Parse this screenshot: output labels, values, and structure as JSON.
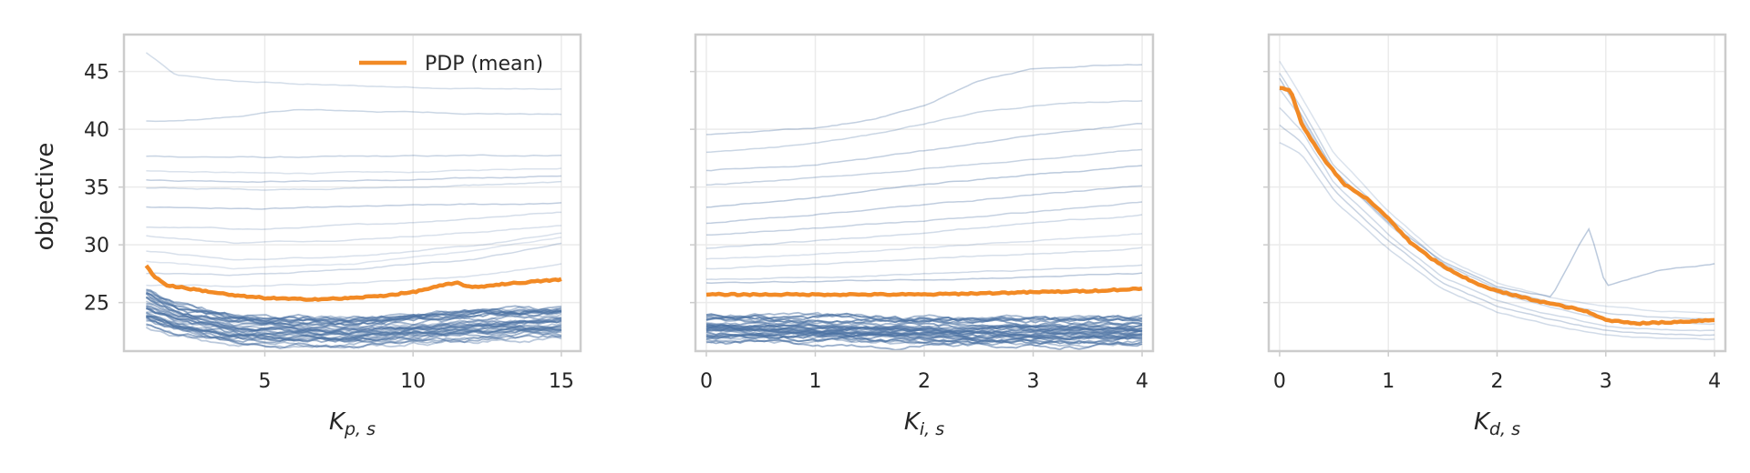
{
  "colors": {
    "ice": "#4c72a3",
    "pdp": "#f28a25",
    "frame": "#cccccc",
    "grid": "#ebebeb"
  },
  "shared": {
    "ylabel": "objective",
    "ylim": [
      20.8,
      48.2
    ],
    "yticks": [
      25,
      30,
      35,
      40,
      45
    ]
  },
  "chart_data": [
    {
      "type": "line",
      "xlabel_base": "K",
      "xlabel_sub": "p, s",
      "xlim": [
        0.25,
        15.65
      ],
      "xticks": [
        5,
        10,
        15
      ],
      "legend": {
        "entry": "PDP (mean)",
        "placement": "top-right"
      },
      "pdp": {
        "name": "PDP (mean)",
        "x": [
          1.0,
          1.3,
          1.7,
          2.2,
          3.0,
          4.0,
          5.0,
          6.0,
          7.0,
          8.0,
          9.0,
          10.0,
          11.0,
          11.5,
          12.0,
          13.0,
          14.0,
          15.0
        ],
        "y": [
          28.2,
          27.2,
          26.5,
          26.3,
          26.0,
          25.6,
          25.4,
          25.3,
          25.3,
          25.4,
          25.6,
          25.9,
          26.5,
          26.7,
          26.3,
          26.6,
          26.8,
          27.0
        ]
      },
      "ice_bands": [
        {
          "x": [
            1,
            2,
            4,
            6,
            8,
            10,
            12,
            15
          ],
          "y": [
            46.6,
            44.6,
            44.1,
            43.9,
            43.7,
            43.6,
            43.5,
            43.4
          ]
        },
        {
          "x": [
            1,
            2,
            4,
            6,
            8,
            10,
            12,
            15
          ],
          "y": [
            40.6,
            40.6,
            41.0,
            41.6,
            41.5,
            41.4,
            41.3,
            41.2
          ]
        },
        {
          "x": [
            1,
            5,
            10,
            15
          ],
          "y": [
            37.6,
            37.5,
            37.6,
            37.7
          ]
        },
        {
          "x": [
            1,
            5,
            10,
            15
          ],
          "y": [
            36.5,
            36.3,
            36.4,
            36.8
          ]
        },
        {
          "x": [
            1,
            5,
            10,
            15
          ],
          "y": [
            35.6,
            35.5,
            35.6,
            36.0
          ]
        },
        {
          "x": [
            1,
            5,
            10,
            15
          ],
          "y": [
            34.9,
            34.8,
            35.0,
            35.4
          ]
        },
        {
          "x": [
            1,
            5,
            10,
            15
          ],
          "y": [
            33.4,
            33.2,
            33.5,
            33.7
          ]
        },
        {
          "x": [
            1,
            5,
            10,
            15
          ],
          "y": [
            31.6,
            31.4,
            32.0,
            32.9
          ]
        },
        {
          "x": [
            1,
            4,
            8,
            12,
            15
          ],
          "y": [
            30.9,
            30.3,
            30.6,
            31.2,
            31.8
          ]
        },
        {
          "x": [
            1,
            4,
            8,
            12,
            15
          ],
          "y": [
            29.6,
            28.8,
            29.2,
            30.0,
            31.1
          ]
        },
        {
          "x": [
            1,
            4,
            8,
            12,
            15
          ],
          "y": [
            28.6,
            28.0,
            28.4,
            29.5,
            30.7
          ]
        },
        {
          "x": [
            1,
            4,
            8,
            12,
            15
          ],
          "y": [
            27.4,
            27.3,
            27.8,
            28.6,
            30.0
          ]
        },
        {
          "x": [
            1,
            4,
            8,
            12,
            15
          ],
          "y": [
            26.6,
            26.5,
            26.8,
            27.4,
            28.4
          ]
        },
        {
          "x": [
            1,
            2,
            4,
            8,
            12,
            15
          ],
          "y": [
            25.9,
            24.5,
            23.6,
            23.4,
            24.1,
            24.3
          ]
        },
        {
          "x": [
            1,
            2,
            4,
            8,
            12,
            15
          ],
          "y": [
            25.1,
            24.0,
            23.1,
            22.9,
            23.6,
            23.9
          ]
        },
        {
          "x": [
            1,
            2,
            4,
            8,
            12,
            15
          ],
          "y": [
            24.5,
            23.5,
            22.7,
            22.5,
            23.1,
            23.5
          ]
        },
        {
          "x": [
            1,
            2,
            4,
            8,
            12,
            15
          ],
          "y": [
            23.9,
            23.0,
            22.2,
            22.0,
            22.6,
            22.9
          ]
        },
        {
          "x": [
            1,
            2,
            4,
            8,
            12,
            15
          ],
          "y": [
            23.4,
            22.6,
            21.9,
            21.6,
            22.1,
            22.3
          ]
        }
      ]
    },
    {
      "type": "line",
      "xlabel_base": "K",
      "xlabel_sub": "i, s",
      "xlim": [
        -0.1,
        4.1
      ],
      "xticks": [
        0,
        1,
        2,
        3,
        4
      ],
      "pdp": {
        "name": "PDP (mean)",
        "x": [
          0,
          0.5,
          1.0,
          1.5,
          2.0,
          2.5,
          3.0,
          3.5,
          4.0
        ],
        "y": [
          25.7,
          25.7,
          25.7,
          25.7,
          25.7,
          25.8,
          25.9,
          26.0,
          26.2
        ]
      },
      "ice_bands": [
        {
          "x": [
            0,
            0.5,
            1,
            1.5,
            2,
            2.5,
            3,
            3.5,
            4
          ],
          "y": [
            39.5,
            39.8,
            40.1,
            40.8,
            42.0,
            44.2,
            45.2,
            45.5,
            45.6
          ]
        },
        {
          "x": [
            0,
            0.5,
            1,
            1.5,
            2,
            2.5,
            3,
            3.5,
            4
          ],
          "y": [
            38.0,
            38.3,
            38.8,
            39.5,
            40.5,
            41.5,
            42.0,
            42.3,
            42.5
          ]
        },
        {
          "x": [
            0,
            1,
            2,
            3,
            4
          ],
          "y": [
            36.5,
            37.0,
            38.2,
            39.5,
            40.5
          ]
        },
        {
          "x": [
            0,
            1,
            2,
            3,
            4
          ],
          "y": [
            35.2,
            35.8,
            36.6,
            37.4,
            38.3
          ]
        },
        {
          "x": [
            0,
            1,
            2,
            3,
            4
          ],
          "y": [
            33.2,
            34.0,
            35.2,
            36.0,
            36.8
          ]
        },
        {
          "x": [
            0,
            1,
            2,
            3,
            4
          ],
          "y": [
            32.0,
            32.8,
            33.6,
            34.5,
            35.2
          ]
        },
        {
          "x": [
            0,
            1,
            2,
            3,
            4
          ],
          "y": [
            31.0,
            31.6,
            32.2,
            33.0,
            33.8
          ]
        },
        {
          "x": [
            0,
            1,
            2,
            3,
            4
          ],
          "y": [
            29.6,
            30.2,
            31.0,
            31.8,
            32.5
          ]
        },
        {
          "x": [
            0,
            1,
            2,
            3,
            4
          ],
          "y": [
            28.6,
            29.0,
            29.6,
            30.2,
            30.8
          ]
        },
        {
          "x": [
            0,
            1,
            2,
            3,
            4
          ],
          "y": [
            27.8,
            28.2,
            28.7,
            29.1,
            29.6
          ]
        },
        {
          "x": [
            0,
            1,
            2,
            3,
            4
          ],
          "y": [
            27.1,
            27.3,
            27.6,
            27.9,
            28.3
          ]
        },
        {
          "x": [
            0,
            1,
            2,
            3,
            4
          ],
          "y": [
            26.6,
            26.7,
            26.9,
            27.1,
            27.4
          ]
        },
        {
          "x": [
            0,
            1,
            2,
            3,
            4
          ],
          "y": [
            23.6,
            23.4,
            23.3,
            23.3,
            23.4
          ]
        },
        {
          "x": [
            0,
            1,
            2,
            3,
            4
          ],
          "y": [
            23.2,
            23.0,
            22.9,
            22.9,
            23.0
          ]
        },
        {
          "x": [
            0,
            1,
            2,
            3,
            4
          ],
          "y": [
            22.8,
            22.7,
            22.6,
            22.5,
            22.6
          ]
        },
        {
          "x": [
            0,
            1,
            2,
            3,
            4
          ],
          "y": [
            22.4,
            22.3,
            22.1,
            22.0,
            22.2
          ]
        },
        {
          "x": [
            0,
            1,
            2,
            3,
            4
          ],
          "y": [
            22.0,
            21.9,
            21.7,
            21.6,
            21.8
          ]
        }
      ]
    },
    {
      "type": "line",
      "xlabel_base": "K",
      "xlabel_sub": "d, s",
      "xlim": [
        -0.1,
        4.1
      ],
      "xticks": [
        0,
        1,
        2,
        3,
        4
      ],
      "pdp": {
        "name": "PDP (mean)",
        "x": [
          0,
          0.1,
          0.2,
          0.4,
          0.6,
          0.8,
          1.0,
          1.2,
          1.4,
          1.6,
          1.8,
          2.0,
          2.3,
          2.6,
          2.8,
          3.0,
          3.3,
          3.6,
          4.0
        ],
        "y": [
          43.6,
          43.4,
          40.5,
          37.5,
          35.2,
          34.0,
          32.3,
          30.2,
          28.8,
          27.6,
          26.7,
          26.0,
          25.3,
          24.7,
          24.3,
          23.5,
          23.2,
          23.3,
          23.5
        ]
      },
      "ice_bands": [
        {
          "x": [
            0,
            0.2,
            0.5,
            1.0,
            1.5,
            2.0,
            2.5,
            3.0,
            3.5,
            4.0
          ],
          "y": [
            46.0,
            43.0,
            38.0,
            33.0,
            29.0,
            26.8,
            25.6,
            24.8,
            24.4,
            24.2
          ]
        },
        {
          "x": [
            0,
            0.2,
            0.5,
            1.0,
            1.5,
            2.0,
            2.5,
            3.0,
            3.5,
            4.0
          ],
          "y": [
            45.0,
            42.0,
            37.0,
            32.5,
            28.5,
            26.3,
            25.1,
            24.2,
            23.8,
            23.7
          ]
        },
        {
          "x": [
            0,
            0.2,
            0.5,
            1.0,
            1.5,
            2.0,
            2.5,
            3.0,
            3.5,
            4.0
          ],
          "y": [
            43.5,
            41.0,
            36.3,
            31.8,
            28.0,
            25.8,
            24.6,
            23.6,
            23.2,
            23.2
          ]
        },
        {
          "x": [
            0,
            0.2,
            0.5,
            1.0,
            1.5,
            2.0,
            2.5,
            3.0,
            3.5,
            4.0
          ],
          "y": [
            42.0,
            40.0,
            35.5,
            31.0,
            27.4,
            25.3,
            24.1,
            23.1,
            22.8,
            22.7
          ]
        },
        {
          "x": [
            0,
            0.2,
            0.5,
            1.0,
            1.5,
            2.0,
            2.5,
            3.0,
            3.5,
            4.0
          ],
          "y": [
            40.5,
            39.0,
            34.8,
            30.4,
            26.8,
            24.8,
            23.6,
            22.7,
            22.4,
            22.3
          ]
        },
        {
          "x": [
            0,
            0.2,
            0.5,
            1.0,
            1.5,
            2.0,
            2.5,
            3.0,
            3.5,
            4.0
          ],
          "y": [
            39.0,
            38.0,
            34.0,
            29.8,
            26.3,
            24.3,
            23.2,
            22.3,
            22.0,
            21.9
          ]
        },
        {
          "x": [
            0,
            0.5,
            1.0,
            1.5,
            2.0,
            2.5,
            2.75,
            2.85,
            3.0,
            3.5,
            4.0
          ],
          "y": [
            44.5,
            36.5,
            32.0,
            28.6,
            26.4,
            25.6,
            30.0,
            31.5,
            26.5,
            27.8,
            28.4
          ]
        }
      ]
    }
  ]
}
